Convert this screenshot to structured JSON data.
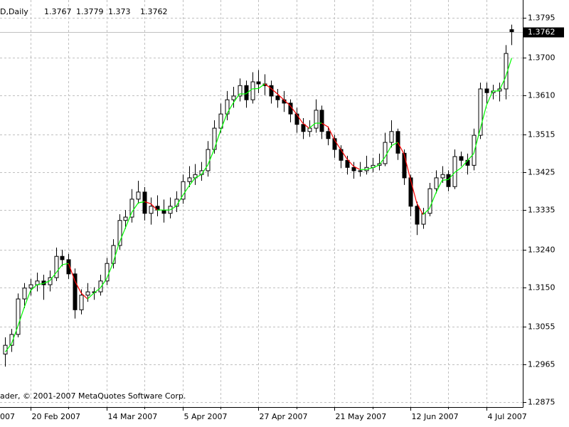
{
  "chart_data": {
    "type": "candlestick",
    "symbol": "D,Daily",
    "copyright": "ader, © 2001-2007 MetaQuotes Software Corp.",
    "ohlc": [
      [
        1.299,
        1.303,
        1.296,
        1.3011
      ],
      [
        1.3011,
        1.305,
        1.2995,
        1.3037
      ],
      [
        1.3037,
        1.3135,
        1.303,
        1.3122
      ],
      [
        1.3122,
        1.316,
        1.31,
        1.3148
      ],
      [
        1.3148,
        1.317,
        1.313,
        1.3156
      ],
      [
        1.3156,
        1.3185,
        1.314,
        1.3165
      ],
      [
        1.3165,
        1.318,
        1.312,
        1.3156
      ],
      [
        1.3156,
        1.319,
        1.314,
        1.3173
      ],
      [
        1.3173,
        1.3245,
        1.3165,
        1.3224
      ],
      [
        1.3224,
        1.324,
        1.32,
        1.3216
      ],
      [
        1.3216,
        1.323,
        1.317,
        1.3182
      ],
      [
        1.3182,
        1.3195,
        1.3075,
        1.3096
      ],
      [
        1.3096,
        1.3145,
        1.3085,
        1.3131
      ],
      [
        1.3131,
        1.316,
        1.3115,
        1.3139
      ],
      [
        1.3139,
        1.315,
        1.312,
        1.3139
      ],
      [
        1.3139,
        1.318,
        1.313,
        1.3165
      ],
      [
        1.3165,
        1.322,
        1.3155,
        1.3207
      ],
      [
        1.3207,
        1.3265,
        1.3195,
        1.325
      ],
      [
        1.325,
        1.3325,
        1.324,
        1.331
      ],
      [
        1.331,
        1.3335,
        1.329,
        1.3318
      ],
      [
        1.3318,
        1.3385,
        1.3305,
        1.3361
      ],
      [
        1.3361,
        1.3405,
        1.335,
        1.3378
      ],
      [
        1.3378,
        1.339,
        1.331,
        1.3327
      ],
      [
        1.3327,
        1.3365,
        1.33,
        1.3344
      ],
      [
        1.3344,
        1.337,
        1.332,
        1.3335
      ],
      [
        1.3335,
        1.336,
        1.3305,
        1.3327
      ],
      [
        1.3327,
        1.3365,
        1.3315,
        1.3344
      ],
      [
        1.3344,
        1.338,
        1.333,
        1.3361
      ],
      [
        1.3361,
        1.342,
        1.335,
        1.3403
      ],
      [
        1.3403,
        1.344,
        1.339,
        1.3412
      ],
      [
        1.3412,
        1.3445,
        1.3395,
        1.342
      ],
      [
        1.342,
        1.345,
        1.3405,
        1.3429
      ],
      [
        1.3429,
        1.35,
        1.3415,
        1.348
      ],
      [
        1.348,
        1.355,
        1.347,
        1.3531
      ],
      [
        1.3531,
        1.359,
        1.352,
        1.3565
      ],
      [
        1.3565,
        1.362,
        1.355,
        1.3599
      ],
      [
        1.3599,
        1.363,
        1.358,
        1.3608
      ],
      [
        1.3608,
        1.365,
        1.3595,
        1.3633
      ],
      [
        1.3633,
        1.3645,
        1.358,
        1.3599
      ],
      [
        1.3599,
        1.3665,
        1.359,
        1.3642
      ],
      [
        1.3642,
        1.367,
        1.3615,
        1.3637
      ],
      [
        1.3637,
        1.366,
        1.361,
        1.3633
      ],
      [
        1.3633,
        1.3645,
        1.359,
        1.3608
      ],
      [
        1.3608,
        1.3625,
        1.358,
        1.3599
      ],
      [
        1.3599,
        1.362,
        1.357,
        1.3591
      ],
      [
        1.3591,
        1.36,
        1.3545,
        1.3565
      ],
      [
        1.3565,
        1.358,
        1.352,
        1.354
      ],
      [
        1.354,
        1.3555,
        1.3505,
        1.3523
      ],
      [
        1.3523,
        1.355,
        1.351,
        1.3531
      ],
      [
        1.3531,
        1.36,
        1.352,
        1.3574
      ],
      [
        1.3574,
        1.3585,
        1.3505,
        1.3523
      ],
      [
        1.3523,
        1.3535,
        1.349,
        1.3506
      ],
      [
        1.3506,
        1.3515,
        1.346,
        1.348
      ],
      [
        1.348,
        1.349,
        1.3435,
        1.3454
      ],
      [
        1.3454,
        1.3465,
        1.342,
        1.3437
      ],
      [
        1.3437,
        1.345,
        1.341,
        1.3429
      ],
      [
        1.3429,
        1.345,
        1.3415,
        1.3429
      ],
      [
        1.3429,
        1.3465,
        1.342,
        1.3437
      ],
      [
        1.3437,
        1.346,
        1.3425,
        1.3442
      ],
      [
        1.3442,
        1.347,
        1.343,
        1.3446
      ],
      [
        1.3446,
        1.352,
        1.344,
        1.3497
      ],
      [
        1.3497,
        1.355,
        1.3485,
        1.3523
      ],
      [
        1.3523,
        1.353,
        1.3455,
        1.3471
      ],
      [
        1.3471,
        1.348,
        1.3395,
        1.3412
      ],
      [
        1.3412,
        1.342,
        1.332,
        1.3344
      ],
      [
        1.3344,
        1.3355,
        1.3275,
        1.3301
      ],
      [
        1.3301,
        1.334,
        1.329,
        1.3327
      ],
      [
        1.3327,
        1.34,
        1.332,
        1.3386
      ],
      [
        1.3386,
        1.343,
        1.3375,
        1.3412
      ],
      [
        1.3412,
        1.344,
        1.34,
        1.342
      ],
      [
        1.342,
        1.343,
        1.338,
        1.3391
      ],
      [
        1.3391,
        1.348,
        1.3385,
        1.3463
      ],
      [
        1.3463,
        1.3475,
        1.344,
        1.3454
      ],
      [
        1.3454,
        1.347,
        1.342,
        1.3442
      ],
      [
        1.3442,
        1.353,
        1.343,
        1.3514
      ],
      [
        1.3514,
        1.364,
        1.3505,
        1.3625
      ],
      [
        1.3625,
        1.364,
        1.359,
        1.3616
      ],
      [
        1.3616,
        1.3635,
        1.36,
        1.362
      ],
      [
        1.362,
        1.364,
        1.3595,
        1.3625
      ],
      [
        1.3625,
        1.373,
        1.36,
        1.371
      ],
      [
        1.3767,
        1.3779,
        1.373,
        1.3762
      ]
    ],
    "colors": {
      "up_body": "#ffffff",
      "down_body": "#000000",
      "outline": "#000000"
    },
    "ma": {
      "up_color": "#00ff00",
      "down_color": "#ff0000",
      "values": [
        1.2995,
        1.3015,
        1.3057,
        1.3102,
        1.3142,
        1.3156,
        1.3159,
        1.3165,
        1.3184,
        1.3204,
        1.3207,
        1.3165,
        1.3136,
        1.3122,
        1.3136,
        1.3148,
        1.317,
        1.3207,
        1.3256,
        1.3293,
        1.333,
        1.3352,
        1.3355,
        1.335,
        1.3335,
        1.3335,
        1.3335,
        1.3344,
        1.3369,
        1.3392,
        1.3412,
        1.342,
        1.3443,
        1.348,
        1.3525,
        1.3565,
        1.3591,
        1.3613,
        1.3613,
        1.3625,
        1.3626,
        1.3637,
        1.3626,
        1.3613,
        1.3599,
        1.3585,
        1.3565,
        1.3543,
        1.3531,
        1.3543,
        1.3543,
        1.3534,
        1.3503,
        1.348,
        1.3457,
        1.344,
        1.3432,
        1.3432,
        1.3436,
        1.3442,
        1.3462,
        1.3489,
        1.3497,
        1.3469,
        1.3409,
        1.3352,
        1.3324,
        1.3338,
        1.3375,
        1.3406,
        1.3408,
        1.3425,
        1.3436,
        1.3453,
        1.347,
        1.3527,
        1.3585,
        1.362,
        1.362,
        1.3652,
        1.3699
      ]
    },
    "bid_line": 1.3762,
    "xlim": [
      -0.83,
      81.75
    ],
    "ylim": [
      1.2863,
      1.3838
    ],
    "yticks": [
      1.3795,
      {
        "value": 1.37,
        "label": "1.3700"
      },
      {
        "value": 1.361,
        "label": "1.3610"
      },
      1.3515,
      1.3425,
      1.3335,
      {
        "value": 1.324,
        "label": "1.3240"
      },
      {
        "value": 1.315,
        "label": "1.3150"
      },
      1.3055,
      1.2965,
      1.2875
    ],
    "xticks": [
      {
        "value": -4,
        "label": "007"
      },
      {
        "value": 4,
        "label": "20 Feb 2007"
      },
      {
        "value": 16,
        "label": "14 Mar 2007"
      },
      {
        "value": 28,
        "label": "5 Apr 2007"
      },
      {
        "value": 40,
        "label": "27 Apr 2007"
      },
      {
        "value": 52,
        "label": "21 May 2007"
      },
      {
        "value": 64,
        "label": "12 Jun 2007"
      },
      {
        "value": 76,
        "label": "4 Jul 2007"
      }
    ],
    "minor_xticks": [
      10,
      22,
      34,
      46,
      58,
      70
    ],
    "grid": true
  }
}
